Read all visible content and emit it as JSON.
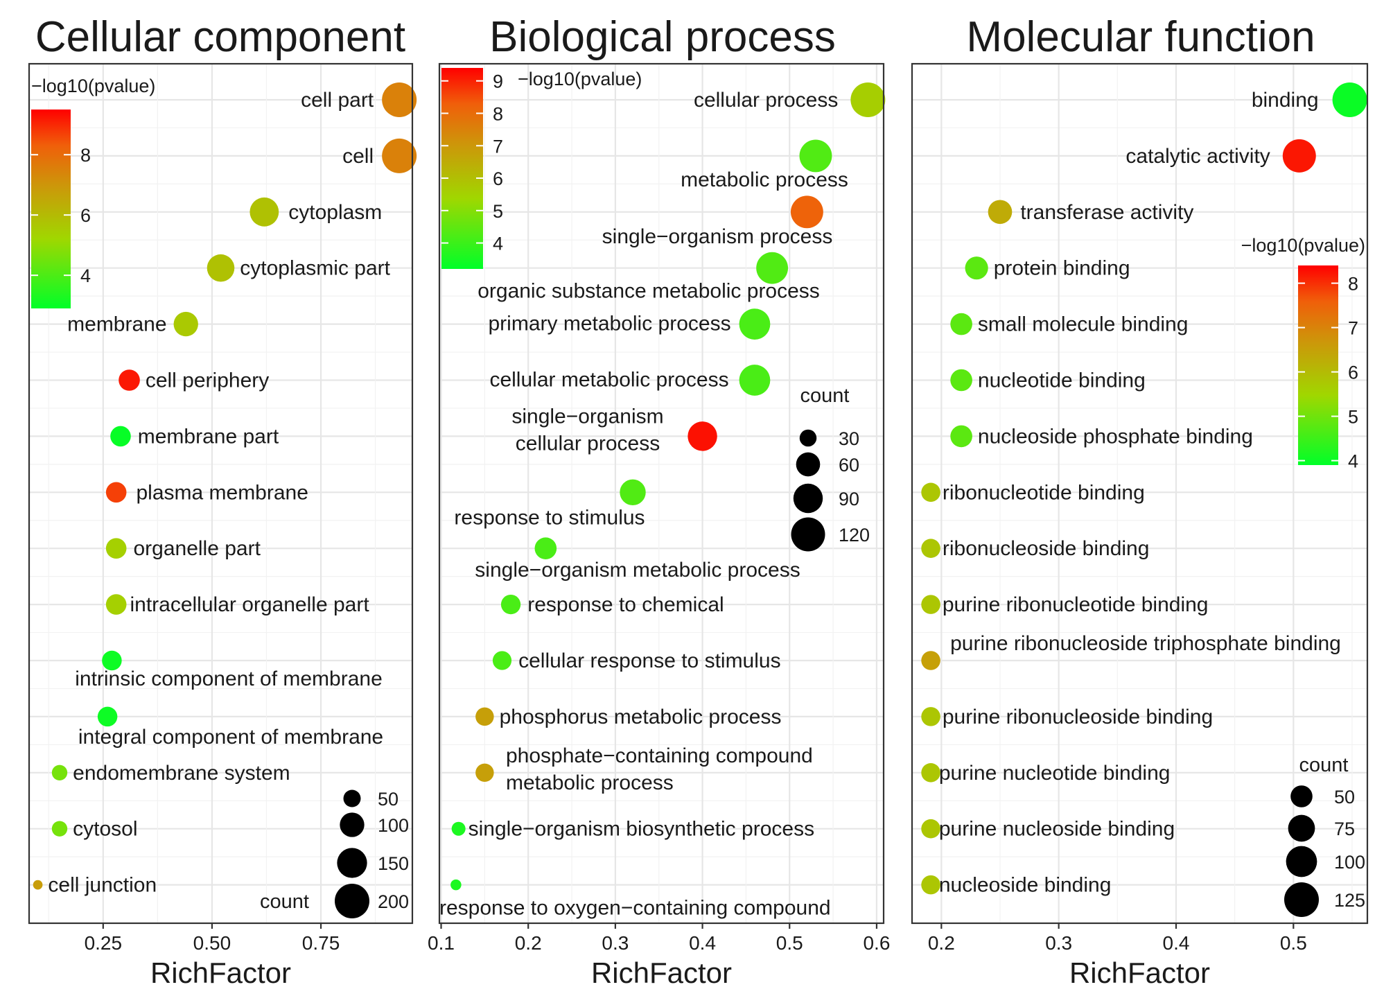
{
  "chart_data": [
    {
      "type": "scatter",
      "title": "Cellular component",
      "xlabel": "RichFactor",
      "ylabel": "",
      "xlim": [
        0.08,
        0.96
      ],
      "xticks": [
        0.25,
        0.5,
        0.75
      ],
      "xtick_labels": [
        "0.25",
        "0.50",
        "0.75"
      ],
      "grid": true,
      "color_legend": {
        "title": "−log10(pvalue)",
        "ticks": [
          4,
          6,
          8
        ],
        "min": 2.9,
        "max": 9.5,
        "placement": "top-left"
      },
      "size_legend": {
        "title": "count",
        "values": [
          50,
          100,
          150,
          200
        ],
        "placement": "bottom-right"
      },
      "points": [
        {
          "label": "cell part",
          "x": 0.93,
          "count": 200,
          "logp": 7.5
        },
        {
          "label": "cell",
          "x": 0.93,
          "count": 200,
          "logp": 7.5
        },
        {
          "label": "cytoplasm",
          "x": 0.62,
          "count": 140,
          "logp": 5.8
        },
        {
          "label": "cytoplasmic part",
          "x": 0.52,
          "count": 125,
          "logp": 5.8
        },
        {
          "label": "membrane",
          "x": 0.44,
          "count": 100,
          "logp": 5.6
        },
        {
          "label": "cell periphery",
          "x": 0.31,
          "count": 75,
          "logp": 9.2
        },
        {
          "label": "membrane part",
          "x": 0.29,
          "count": 70,
          "logp": 3.0
        },
        {
          "label": "plasma membrane",
          "x": 0.28,
          "count": 70,
          "logp": 8.7
        },
        {
          "label": "organelle part",
          "x": 0.28,
          "count": 70,
          "logp": 5.4
        },
        {
          "label": "intracellular organelle part",
          "x": 0.28,
          "count": 70,
          "logp": 5.4
        },
        {
          "label": "intrinsic component of membrane",
          "x": 0.27,
          "count": 65,
          "logp": 3.1
        },
        {
          "label": "integral component of membrane",
          "x": 0.26,
          "count": 65,
          "logp": 3.1
        },
        {
          "label": "endomembrane system",
          "x": 0.15,
          "count": 40,
          "logp": 4.6
        },
        {
          "label": "cytosol",
          "x": 0.15,
          "count": 40,
          "logp": 4.6
        },
        {
          "label": "cell junction",
          "x": 0.1,
          "count": 15,
          "logp": 6.8
        }
      ]
    },
    {
      "type": "scatter",
      "title": "Biological process",
      "xlabel": "RichFactor",
      "ylabel": "",
      "xlim": [
        0.098,
        0.608
      ],
      "xticks": [
        0.1,
        0.2,
        0.3,
        0.4,
        0.5,
        0.6
      ],
      "xtick_labels": [
        "0.1",
        "0.2",
        "0.3",
        "0.4",
        "0.5",
        "0.6"
      ],
      "grid": true,
      "color_legend": {
        "title": "−log10(pvalue)",
        "ticks": [
          4,
          5,
          6,
          7,
          8,
          9
        ],
        "min": 3.2,
        "max": 9.4,
        "placement": "top-left"
      },
      "size_legend": {
        "title": "count",
        "values": [
          30,
          60,
          90,
          120
        ],
        "placement": "right"
      },
      "points": [
        {
          "label": "cellular process",
          "x": 0.59,
          "count": 125,
          "logp": 5.6
        },
        {
          "label": "metabolic process",
          "x": 0.53,
          "count": 110,
          "logp": 4.3
        },
        {
          "label": "single−organism process",
          "x": 0.52,
          "count": 110,
          "logp": 8.2
        },
        {
          "label": "organic substance metabolic process",
          "x": 0.48,
          "count": 105,
          "logp": 4.3
        },
        {
          "label": "primary metabolic process",
          "x": 0.46,
          "count": 100,
          "logp": 4.2
        },
        {
          "label": "cellular metabolic process",
          "x": 0.46,
          "count": 100,
          "logp": 4.2
        },
        {
          "label": "single−organism cellular process",
          "label_lines": [
            "single−organism",
            "cellular process"
          ],
          "x": 0.4,
          "count": 90,
          "logp": 9.2
        },
        {
          "label": "response to stimulus",
          "x": 0.32,
          "count": 70,
          "logp": 4.3
        },
        {
          "label": "single−organism metabolic process",
          "x": 0.22,
          "count": 50,
          "logp": 4.2
        },
        {
          "label": "response to chemical",
          "x": 0.18,
          "count": 40,
          "logp": 4.2
        },
        {
          "label": "cellular response to stimulus",
          "x": 0.17,
          "count": 37,
          "logp": 4.2
        },
        {
          "label": "phosphorus metabolic process",
          "x": 0.15,
          "count": 35,
          "logp": 6.8
        },
        {
          "label": "phosphate−containing compound metabolic process",
          "label_lines": [
            "phosphate−containing compound",
            "metabolic process"
          ],
          "x": 0.15,
          "count": 35,
          "logp": 6.8
        },
        {
          "label": "single−organism biosynthetic process",
          "x": 0.12,
          "count": 20,
          "logp": 3.6
        },
        {
          "label": "response to oxygen−containing compound",
          "x": 0.117,
          "count": 12,
          "logp": 3.6
        }
      ]
    },
    {
      "type": "scatter",
      "title": "Molecular function",
      "xlabel": "RichFactor",
      "ylabel": "",
      "xlim": [
        0.175,
        0.563
      ],
      "xticks": [
        0.2,
        0.3,
        0.4,
        0.5
      ],
      "xtick_labels": [
        "0.2",
        "0.3",
        "0.4",
        "0.5"
      ],
      "grid": true,
      "color_legend": {
        "title": "−log10(pvalue)",
        "ticks": [
          4,
          5,
          6,
          7,
          8
        ],
        "min": 3.9,
        "max": 8.4,
        "placement": "right"
      },
      "size_legend": {
        "title": "count",
        "values": [
          50,
          75,
          100,
          125
        ],
        "placement": "bottom-right"
      },
      "points": [
        {
          "label": "binding",
          "x": 0.548,
          "count": 125,
          "logp": 4.0
        },
        {
          "label": "catalytic activity",
          "x": 0.505,
          "count": 115,
          "logp": 8.2
        },
        {
          "label": "transferase activity",
          "x": 0.25,
          "count": 60,
          "logp": 6.3
        },
        {
          "label": "protein binding",
          "x": 0.23,
          "count": 55,
          "logp": 4.8
        },
        {
          "label": "small molecule binding",
          "x": 0.217,
          "count": 50,
          "logp": 4.8
        },
        {
          "label": "nucleotide binding",
          "x": 0.217,
          "count": 50,
          "logp": 4.8
        },
        {
          "label": "nucleoside phosphate binding",
          "x": 0.217,
          "count": 50,
          "logp": 4.8
        },
        {
          "label": "ribonucleotide binding",
          "x": 0.191,
          "count": 38,
          "logp": 5.8
        },
        {
          "label": "ribonucleoside binding",
          "x": 0.191,
          "count": 38,
          "logp": 5.8
        },
        {
          "label": "purine ribonucleotide binding",
          "x": 0.191,
          "count": 38,
          "logp": 5.8
        },
        {
          "label": "purine ribonucleoside triphosphate binding",
          "x": 0.191,
          "count": 38,
          "logp": 6.5
        },
        {
          "label": "purine ribonucleoside binding",
          "x": 0.191,
          "count": 38,
          "logp": 5.8
        },
        {
          "label": "purine nucleotide binding",
          "x": 0.191,
          "count": 38,
          "logp": 5.8
        },
        {
          "label": "purine nucleoside binding",
          "x": 0.191,
          "count": 38,
          "logp": 5.8
        },
        {
          "label": "nucleoside binding",
          "x": 0.191,
          "count": 38,
          "logp": 5.8
        }
      ]
    }
  ]
}
